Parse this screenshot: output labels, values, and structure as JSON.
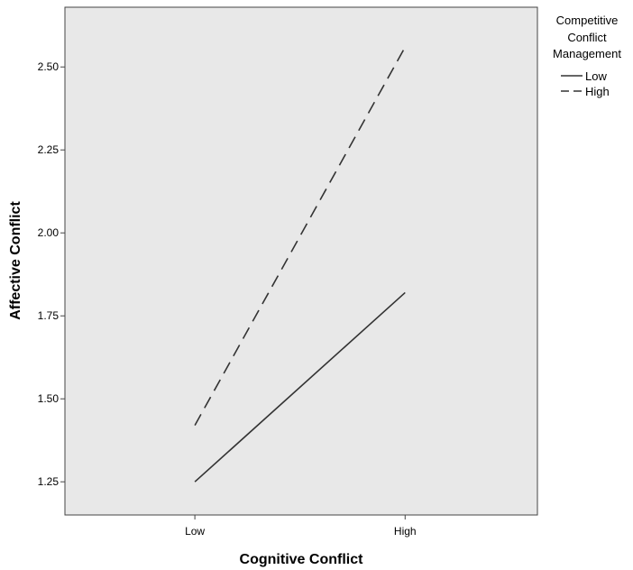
{
  "chart_data": {
    "type": "line",
    "title": "",
    "xlabel": "Cognitive Conflict",
    "ylabel": "Affective Conflict",
    "categories": [
      "Low",
      "High"
    ],
    "ylim": [
      1.15,
      2.68
    ],
    "yticks": [
      1.25,
      1.5,
      1.75,
      2.0,
      2.25,
      2.5
    ],
    "ytick_labels": [
      "1.25",
      "1.50",
      "1.75",
      "2.00",
      "2.25",
      "2.50"
    ],
    "grid": false,
    "background": "#e8e8e8",
    "legend": {
      "title_lines": [
        "Competitive",
        "Conflict",
        "Management"
      ],
      "placement": "right-top"
    },
    "series": [
      {
        "name": "Low",
        "values": [
          1.25,
          1.82
        ],
        "style": "solid",
        "color": "#333333"
      },
      {
        "name": "High",
        "values": [
          1.42,
          2.56
        ],
        "style": "dashed",
        "color": "#333333"
      }
    ]
  }
}
